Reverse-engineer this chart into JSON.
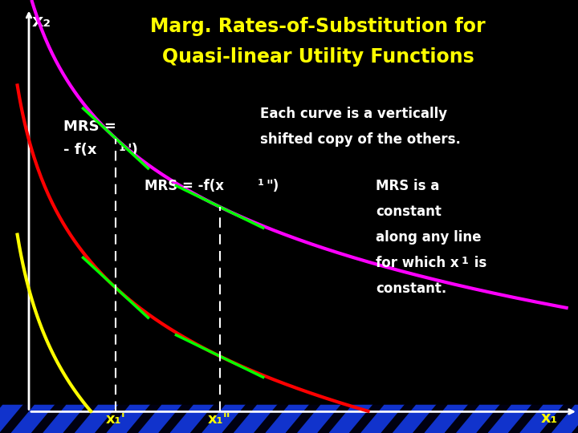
{
  "title_line1": "Marg. Rates-of-Substitution for",
  "title_line2": "Quasi-linear Utility Functions",
  "title_color": "#FFFF00",
  "bg_color": "#000000",
  "stripe_color1": "#0000CC",
  "stripe_color2": "#000088",
  "axis_color": "#FFFFFF",
  "curve_colors": [
    "#FF0000",
    "#FFFF00",
    "#FF00FF"
  ],
  "tangent_color": "#00FF00",
  "dashed_color": "#FFFFFF",
  "text_color": "#FFFFFF",
  "label_color": "#FFFF00",
  "annotations": {
    "mrs1": "MRS =\n- f(x₁')",
    "mrs2": "MRS = -f(x₁\")",
    "each_curve": "Each curve is a vertically\nshifted copy of the others.",
    "mrs_constant": "MRS is a\nconstant\nalong any line\nfor which x₁ is\nconstant.",
    "x1_prime": "x₁'",
    "x1_double_prime": "x₁\"",
    "x1_label": "x₁",
    "x2_label": "x₂"
  }
}
